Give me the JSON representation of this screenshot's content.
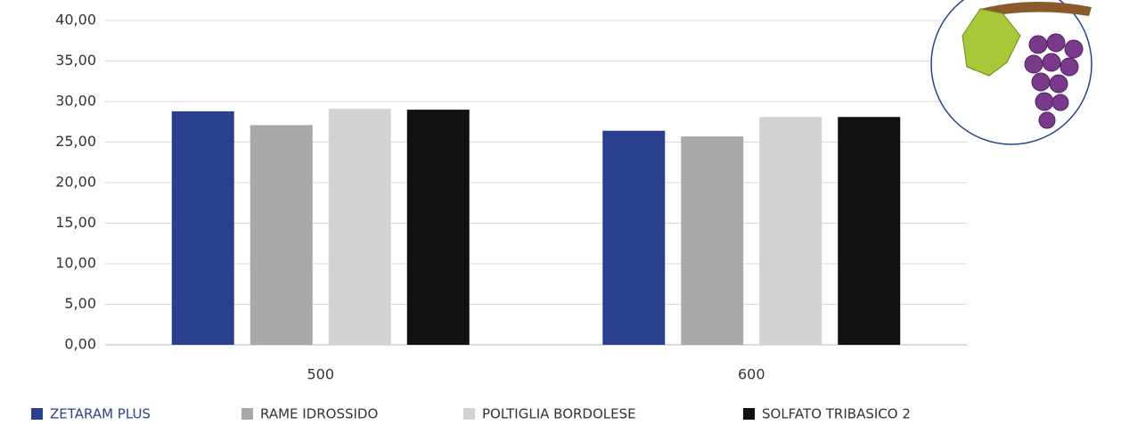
{
  "chart_data": {
    "type": "bar",
    "categories": [
      "500",
      "600"
    ],
    "series": [
      {
        "name": "ZETARAM PLUS",
        "color": "#2b3f8f",
        "values": [
          28.8,
          26.4
        ]
      },
      {
        "name": "RAME IDROSSIDO",
        "color": "#a9a9a9",
        "values": [
          27.1,
          25.7
        ]
      },
      {
        "name": "POLTIGLIA BORDOLESE",
        "color": "#d2d2d2",
        "values": [
          29.1,
          28.1
        ]
      },
      {
        "name": "SOLFATO TRIBASICO 2",
        "color": "#111111",
        "values": [
          29.0,
          28.1
        ]
      }
    ],
    "ylim": [
      0,
      40
    ],
    "yticks": [
      {
        "value": 0,
        "label": "0,00"
      },
      {
        "value": 5,
        "label": "5,00"
      },
      {
        "value": 10,
        "label": "10,00"
      },
      {
        "value": 15,
        "label": "15,00"
      },
      {
        "value": 20,
        "label": "20,00"
      },
      {
        "value": 25,
        "label": "25,00"
      },
      {
        "value": 30,
        "label": "30,00"
      },
      {
        "value": 35,
        "label": "35,00"
      },
      {
        "value": 40,
        "label": "40,00"
      }
    ],
    "grid": true,
    "legend": "bottom"
  }
}
